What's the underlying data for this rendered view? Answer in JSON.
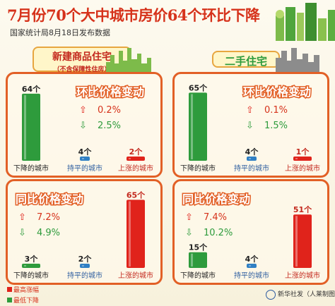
{
  "header": {
    "title": "7月份70个大中城市房价64个环比下降",
    "subtitle": "国家统计局8月18日发布数据"
  },
  "sections": {
    "new": {
      "label": "新建商品住宅",
      "note": "（不含保障性住房）"
    },
    "second": {
      "label": "二手住宅"
    }
  },
  "legend": {
    "max_drop": "最高涨幅",
    "min_drop": "最低下降"
  },
  "credit": "新华社发（人莱制图）",
  "colors": {
    "red": "#e0231b",
    "green": "#2e9b3c",
    "blue": "#2f7fc4",
    "orange": "#e26026"
  },
  "chart_data": [
    {
      "type": "bar",
      "section": "新建商品住宅",
      "title": "环比价格变动",
      "categories": [
        "下降的城市",
        "持平的城市",
        "上涨的城市"
      ],
      "values": [
        64,
        4,
        2
      ],
      "value_labels": [
        "64个",
        "4个",
        "2个"
      ],
      "range": {
        "up": "0.2%",
        "down": "2.5%"
      }
    },
    {
      "type": "bar",
      "section": "新建商品住宅",
      "title": "同比价格变动",
      "categories": [
        "下降的城市",
        "持平的城市",
        "上涨的城市"
      ],
      "values": [
        3,
        2,
        65
      ],
      "value_labels": [
        "3个",
        "2个",
        "65个"
      ],
      "range": {
        "up": "7.2%",
        "down": "4.9%"
      }
    },
    {
      "type": "bar",
      "section": "二手住宅",
      "title": "环比价格变动",
      "categories": [
        "下降的城市",
        "持平的城市",
        "上涨的城市"
      ],
      "values": [
        65,
        4,
        1
      ],
      "value_labels": [
        "65个",
        "4个",
        "1个"
      ],
      "range": {
        "up": "0.1%",
        "down": "1.5%"
      }
    },
    {
      "type": "bar",
      "section": "二手住宅",
      "title": "同比价格变动",
      "categories": [
        "下降的城市",
        "持平的城市",
        "上涨的城市"
      ],
      "values": [
        15,
        4,
        51
      ],
      "value_labels": [
        "15个",
        "4个",
        "51个"
      ],
      "range": {
        "up": "7.4%",
        "down": "10.2%"
      }
    }
  ]
}
